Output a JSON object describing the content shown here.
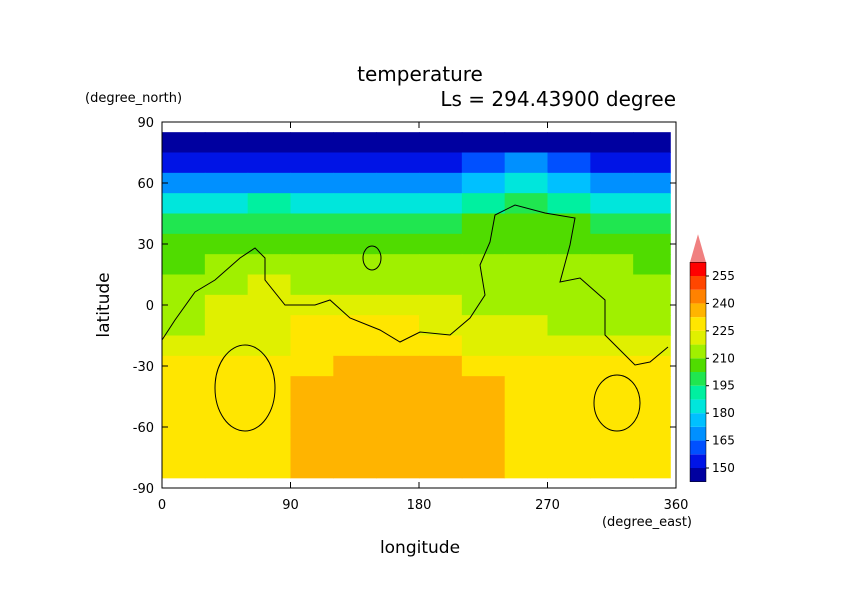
{
  "chart_data": {
    "type": "contour",
    "title": "temperature",
    "subtitle": "Ls = 294.43900 degree",
    "xlabel": "longitude",
    "ylabel": "latitude",
    "xunit": "(degree_east)",
    "yunit": "(degree_north)",
    "xlim": [
      0,
      360
    ],
    "ylim": [
      -90,
      90
    ],
    "xticks": [
      0,
      90,
      180,
      270,
      360
    ],
    "yticks": [
      90,
      60,
      30,
      0,
      -30,
      -60,
      -90
    ],
    "lon_edges": [
      0,
      30,
      60,
      90,
      120,
      150,
      180,
      210,
      240,
      270,
      300,
      330,
      356
    ],
    "lat_edges": [
      85,
      75,
      65,
      55,
      45,
      35,
      25,
      15,
      5,
      -5,
      -15,
      -25,
      -35,
      -45,
      -55,
      -65,
      -75,
      -85
    ],
    "z": [
      [
        145,
        145,
        145,
        145,
        145,
        145,
        145,
        145,
        145,
        145,
        145,
        145
      ],
      [
        150,
        152,
        155,
        152,
        150,
        150,
        155,
        160,
        165,
        160,
        152,
        150
      ],
      [
        165,
        168,
        172,
        170,
        165,
        165,
        170,
        178,
        182,
        178,
        170,
        165
      ],
      [
        182,
        185,
        188,
        186,
        182,
        182,
        186,
        192,
        196,
        192,
        186,
        182
      ],
      [
        198,
        200,
        202,
        200,
        198,
        198,
        200,
        204,
        206,
        204,
        200,
        198
      ],
      [
        204,
        206,
        208,
        207,
        205,
        205,
        207,
        208,
        209,
        208,
        206,
        204
      ],
      [
        208,
        212,
        214,
        213,
        211,
        210,
        212,
        212,
        213,
        212,
        210,
        208
      ],
      [
        212,
        216,
        218,
        217,
        215,
        214,
        215,
        215,
        216,
        215,
        213,
        211
      ],
      [
        215,
        218,
        219,
        220,
        219,
        218,
        218,
        217,
        217,
        216,
        214,
        213
      ],
      [
        216,
        218,
        222,
        226,
        226,
        225,
        223,
        220,
        219,
        217,
        216,
        216
      ],
      [
        218,
        220,
        224,
        228,
        229,
        228,
        227,
        224,
        222,
        220,
        218,
        218
      ],
      [
        226,
        227,
        229,
        231,
        234,
        236,
        234,
        232,
        229,
        227,
        226,
        226
      ],
      [
        229,
        230,
        231,
        234,
        236,
        238,
        237,
        236,
        231,
        229,
        229,
        229
      ],
      [
        229,
        230,
        232,
        234,
        235,
        235,
        235,
        234,
        231,
        229,
        229,
        229
      ],
      [
        229,
        230,
        232,
        234,
        235,
        235,
        235,
        234,
        231,
        229,
        229,
        229
      ],
      [
        229,
        229,
        231,
        234,
        235,
        235,
        235,
        234,
        231,
        229,
        229,
        229
      ],
      [
        229,
        229,
        229,
        233,
        234,
        234,
        234,
        233,
        229,
        229,
        229,
        229
      ]
    ],
    "clevels": [
      142.5,
      150,
      157.5,
      165,
      172.5,
      180,
      187.5,
      195,
      202.5,
      210,
      217.5,
      225,
      232.5,
      240,
      247.5,
      255,
      262.5
    ],
    "colors": [
      "#0000a0",
      "#0014e6",
      "#0050ff",
      "#0090ff",
      "#00c0ff",
      "#00e6dc",
      "#00f0a0",
      "#20e650",
      "#50dc00",
      "#a0f000",
      "#e0f000",
      "#ffe600",
      "#ffb400",
      "#ff8200",
      "#ff4600",
      "#ff0000"
    ],
    "extend_color": "#f08080",
    "cbar_ticks": [
      150,
      165,
      180,
      195,
      210,
      225,
      240,
      255
    ]
  }
}
